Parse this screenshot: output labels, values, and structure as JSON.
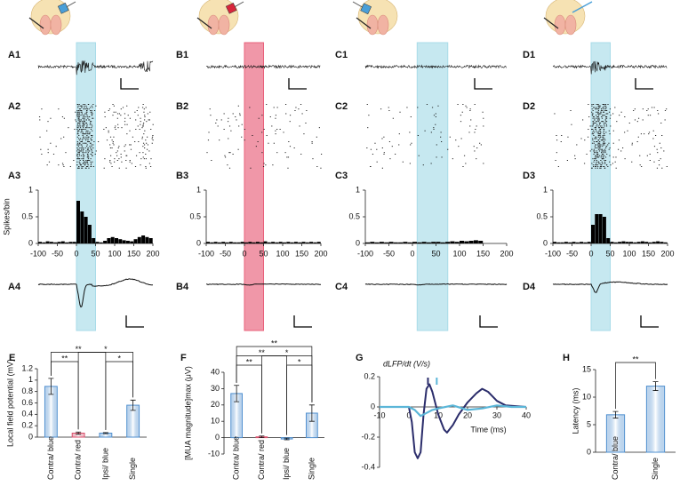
{
  "columns": [
    {
      "labels": [
        "A1",
        "A2",
        "A3",
        "A4"
      ]
    },
    {
      "labels": [
        "B1",
        "B2",
        "B3",
        "B4"
      ]
    },
    {
      "labels": [
        "C1",
        "C2",
        "C3",
        "C4"
      ]
    },
    {
      "labels": [
        "D1",
        "D2",
        "D3",
        "D4"
      ]
    }
  ],
  "chart_data": [
    {
      "type": "histogram",
      "ylabel": "Spikes/bin",
      "color": "#000000",
      "bins": [
        -100,
        -90,
        -80,
        -70,
        -60,
        -50,
        -40,
        -30,
        -20,
        -10,
        0,
        10,
        20,
        30,
        40,
        50,
        60,
        70,
        80,
        90,
        100,
        110,
        120,
        130,
        140,
        150,
        160,
        170,
        180,
        190,
        200
      ],
      "counts": [
        0.03,
        0.02,
        0.04,
        0.03,
        0.02,
        0.03,
        0.04,
        0.02,
        0.03,
        0.03,
        0.8,
        0.6,
        0.5,
        0.35,
        0.1,
        0.03,
        0.02,
        0.05,
        0.1,
        0.12,
        0.1,
        0.08,
        0.06,
        0.05,
        0.04,
        0.08,
        0.12,
        0.15,
        0.12,
        0.1
      ],
      "xlim": [
        -100,
        200
      ],
      "xticks": [
        -100,
        -50,
        0,
        50,
        100,
        150,
        200
      ],
      "ylim": [
        0,
        1
      ],
      "yticks": [
        0,
        0.5,
        1
      ],
      "shade": [
        0,
        50
      ],
      "shade_color": "#a8dbe8"
    },
    {
      "type": "histogram",
      "color": "#000000",
      "bins": [
        -100,
        -90,
        -80,
        -70,
        -60,
        -50,
        -40,
        -30,
        -20,
        -10,
        0,
        10,
        20,
        30,
        40,
        50,
        60,
        70,
        80,
        90,
        100,
        110,
        120,
        130,
        140,
        150,
        160,
        170,
        180,
        190,
        200
      ],
      "counts": [
        0.03,
        0.02,
        0.03,
        0.02,
        0.03,
        0.02,
        0.03,
        0.02,
        0.02,
        0.03,
        0.02,
        0.03,
        0.02,
        0.03,
        0.02,
        0.04,
        0.02,
        0.03,
        0.02,
        0.03,
        0.02,
        0.03,
        0.02,
        0.03,
        0.02,
        0.03,
        0.02,
        0.03,
        0.02,
        0.03
      ],
      "xlim": [
        -100,
        200
      ],
      "xticks": [
        -100,
        -50,
        0,
        50,
        100,
        150,
        200
      ],
      "ylim": [
        0,
        1
      ],
      "yticks": [
        0,
        0.5,
        1
      ],
      "shade": [
        0,
        50
      ],
      "shade_color": "#e8607a"
    },
    {
      "type": "histogram",
      "color": "#000000",
      "bins": [
        -100,
        -90,
        -80,
        -70,
        -60,
        -50,
        -40,
        -30,
        -20,
        -10,
        0,
        10,
        20,
        30,
        40,
        50,
        60,
        70,
        80,
        90,
        100,
        110,
        120,
        130,
        140,
        150,
        160,
        170,
        180,
        190,
        200
      ],
      "counts": [
        0.02,
        0.03,
        0.02,
        0.03,
        0.02,
        0.03,
        0.02,
        0.02,
        0.03,
        0.02,
        0.03,
        0.02,
        0.03,
        0.02,
        0.03,
        0.03,
        0.02,
        0.03,
        0.04,
        0.03,
        0.05,
        0.04,
        0.05,
        0.06,
        0.05,
        0,
        0,
        0,
        0,
        0
      ],
      "xlim": [
        -100,
        200
      ],
      "xticks": [
        -100,
        -50,
        0,
        50,
        100,
        150,
        200
      ],
      "ylim": [
        0,
        1
      ],
      "yticks": [
        0,
        0.5,
        1
      ],
      "shade": [
        10,
        75
      ],
      "shade_color": "#a8dbe8"
    },
    {
      "type": "histogram",
      "color": "#000000",
      "bins": [
        -100,
        -90,
        -80,
        -70,
        -60,
        -50,
        -40,
        -30,
        -20,
        -10,
        0,
        10,
        20,
        30,
        40,
        50,
        60,
        70,
        80,
        90,
        100,
        110,
        120,
        130,
        140,
        150,
        160,
        170,
        180,
        190,
        200
      ],
      "counts": [
        0.03,
        0.02,
        0.02,
        0.03,
        0.02,
        0.03,
        0.02,
        0.03,
        0.02,
        0.03,
        0.35,
        0.55,
        0.55,
        0.5,
        0.1,
        0.03,
        0.02,
        0.03,
        0.04,
        0.03,
        0.03,
        0.02,
        0.03,
        0.04,
        0.03,
        0.02,
        0.03,
        0.04,
        0.03,
        0.02
      ],
      "xlim": [
        -100,
        200
      ],
      "xticks": [
        -100,
        -50,
        0,
        50,
        100,
        150,
        200
      ],
      "ylim": [
        0,
        1
      ],
      "yticks": [
        0,
        0.5,
        1
      ],
      "shade": [
        0,
        50
      ],
      "shade_color": "#a8dbe8"
    },
    {
      "type": "bar",
      "panel": "E",
      "ylabel": "Local field potential (mV)",
      "categories": [
        "Contra/ blue",
        "Contra/ red",
        "Ipsi/ blue",
        "Single"
      ],
      "values": [
        0.89,
        0.07,
        0.07,
        0.56
      ],
      "errors": [
        0.14,
        0.02,
        0.01,
        0.09
      ],
      "colors": [
        "#4f8fcf",
        "#d9506c",
        "#4f8fcf",
        "#4f8fcf"
      ],
      "ylim": [
        0,
        1.2
      ],
      "yticks": [
        0,
        0.2,
        0.4,
        0.6,
        0.8,
        1,
        1.2
      ],
      "brackets": [
        {
          "from": 0,
          "to": 2,
          "label": "**"
        },
        {
          "from": 1,
          "to": 3,
          "label": "*"
        },
        {
          "from": 0,
          "to": 1,
          "label": "**"
        },
        {
          "from": 2,
          "to": 3,
          "label": "*"
        }
      ]
    },
    {
      "type": "bar",
      "panel": "F",
      "ylabel": "[MUA magnitude]max (μV)",
      "categories": [
        "Contra/ blue",
        "Contra/ red",
        "Ipsi/ blue",
        "Single"
      ],
      "values": [
        27,
        0.5,
        -0.8,
        15
      ],
      "errors": [
        5,
        0.5,
        0.5,
        5
      ],
      "colors": [
        "#4f8fcf",
        "#d9506c",
        "#4f8fcf",
        "#4f8fcf"
      ],
      "ylim": [
        -10,
        40
      ],
      "yticks": [
        -10,
        0,
        10,
        20,
        30,
        40
      ],
      "brackets": [
        {
          "from": 0,
          "to": 3,
          "label": "**"
        },
        {
          "from": 0,
          "to": 2,
          "label": "**"
        },
        {
          "from": 1,
          "to": 3,
          "label": "*"
        },
        {
          "from": 0,
          "to": 1,
          "label": "**"
        },
        {
          "from": 2,
          "to": 3,
          "label": "*"
        }
      ]
    },
    {
      "type": "line",
      "panel": "G",
      "title": "dLFP/dt (V/s)",
      "xlabel": "Time (ms)",
      "xlim": [
        -10,
        40
      ],
      "xticks": [
        -10,
        0,
        10,
        20,
        30,
        40
      ],
      "ylim": [
        -0.4,
        0.2
      ],
      "yticks": [
        -0.4,
        -0.2,
        0,
        0.2
      ],
      "series": [
        {
          "color": "#2b2d6b",
          "x": [
            -10,
            0,
            1,
            2,
            3,
            4,
            5,
            6,
            7,
            8,
            10,
            12,
            13,
            15,
            17,
            20,
            23,
            25,
            27,
            30,
            33,
            40
          ],
          "values": [
            0,
            0,
            -0.1,
            -0.3,
            -0.34,
            -0.3,
            -0.05,
            0.12,
            0.15,
            0.1,
            -0.05,
            -0.15,
            -0.17,
            -0.12,
            -0.05,
            0.03,
            0.09,
            0.12,
            0.1,
            0.04,
            0.01,
            0
          ]
        },
        {
          "color": "#5bb6d8",
          "x": [
            -10,
            0,
            2,
            4,
            6,
            8,
            10,
            15,
            20,
            25,
            30,
            35,
            40
          ],
          "values": [
            0,
            0,
            -0.02,
            -0.06,
            -0.04,
            -0.02,
            -0.01,
            0.01,
            -0.02,
            -0.01,
            0.01,
            0,
            0
          ]
        }
      ],
      "markers": [
        {
          "x": 6.5,
          "color": "#2b2d6b"
        },
        {
          "x": 9.5,
          "color": "#5bb6d8"
        }
      ]
    },
    {
      "type": "bar",
      "panel": "H",
      "ylabel": "Latency (ms)",
      "categories": [
        "Contra/ blue",
        "Single"
      ],
      "values": [
        6.8,
        12
      ],
      "errors": [
        0.6,
        0.8
      ],
      "colors": [
        "#4f8fcf",
        "#4f8fcf"
      ],
      "ylim": [
        0,
        15
      ],
      "yticks": [
        0,
        5,
        10,
        15
      ],
      "brackets": [
        {
          "from": 0,
          "to": 1,
          "label": "**"
        }
      ]
    }
  ]
}
